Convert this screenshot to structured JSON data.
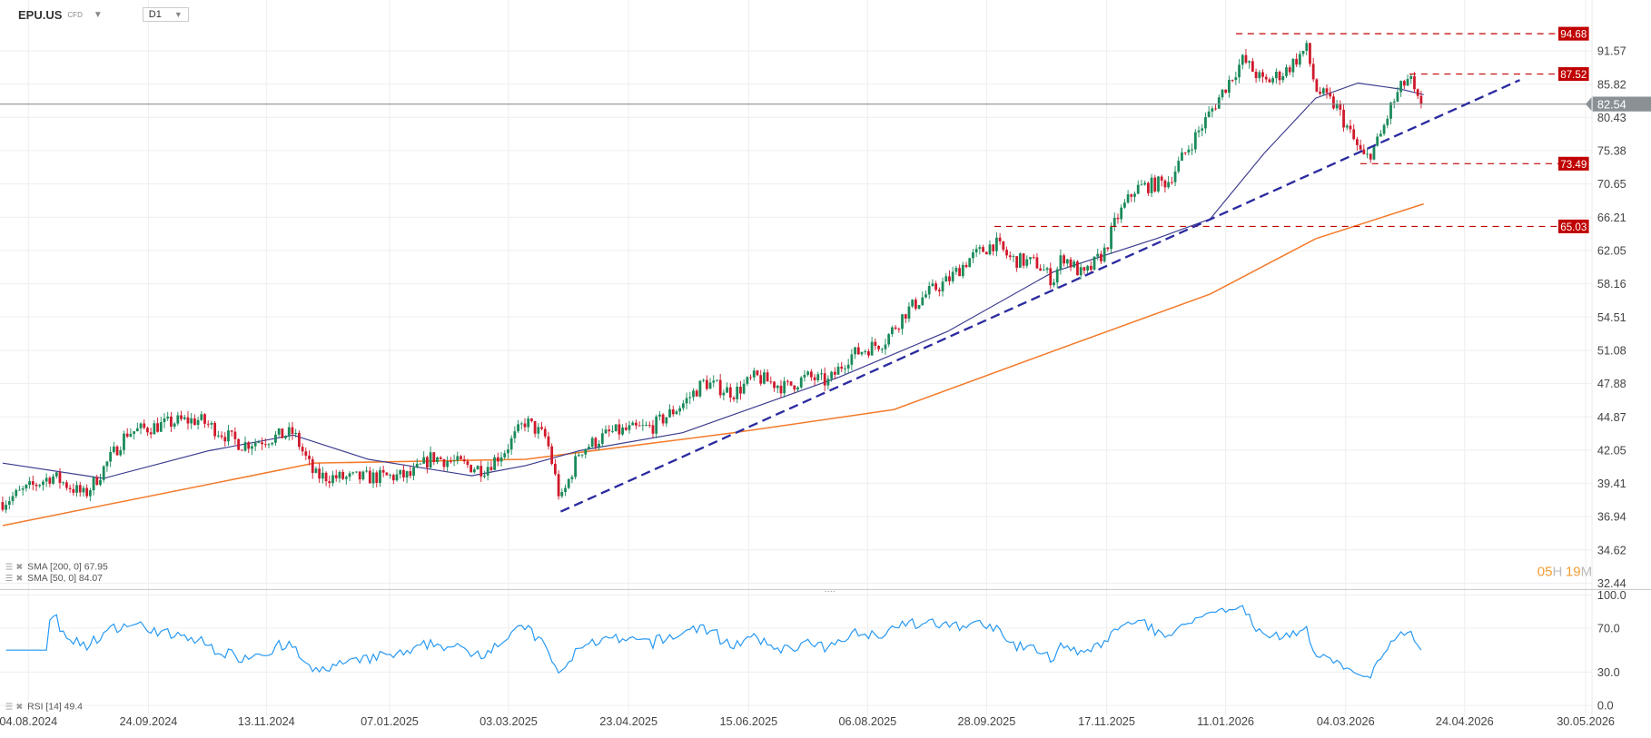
{
  "header": {
    "symbol": "EPU.US",
    "instrument_type": "CFD",
    "timeframe": "D1"
  },
  "countdown": {
    "hours": "05",
    "h": "H",
    "minutes": "19",
    "m": "M"
  },
  "legend": {
    "sma200": "SMA [200, 0] 67.95",
    "sma50": "SMA [50, 0] 84.07",
    "rsi": "RSI [14] 49.4"
  },
  "chart_data": {
    "type": "candlestick",
    "scale": "log",
    "grid": true,
    "ylim": [
      32.44,
      94.68
    ],
    "y_ticks": [
      "91.57",
      "85.82",
      "80.43",
      "75.38",
      "70.65",
      "66.21",
      "62.05",
      "58.16",
      "54.51",
      "51.08",
      "47.88",
      "44.87",
      "42.05",
      "39.41",
      "36.94",
      "34.62",
      "32.44"
    ],
    "x_ticks": [
      "04.08.2024",
      "24.09.2024",
      "13.11.2024",
      "07.01.2025",
      "03.03.2025",
      "23.04.2025",
      "15.06.2025",
      "06.08.2025",
      "28.09.2025",
      "17.11.2025",
      "11.01.2026",
      "04.03.2026",
      "24.04.2026",
      "30.05.2026"
    ],
    "last_price": {
      "value": 82.54,
      "label": "82.54",
      "color": "#8a9196"
    },
    "levels": [
      {
        "value": 94.68,
        "label": "94.68",
        "from": "2026-01-01"
      },
      {
        "value": 87.52,
        "label": "87.52",
        "from": "2026-03-16"
      },
      {
        "value": 73.49,
        "label": "73.49",
        "from": "2026-02-23"
      },
      {
        "value": 65.03,
        "label": "65.03",
        "from": "2025-09-20"
      }
    ],
    "trendline": {
      "from": {
        "date": "2025-03-19",
        "value": 37.3
      },
      "to": {
        "date": "2026-05-02",
        "value": 86.5
      }
    },
    "colors": {
      "up": "#1a8a5a",
      "down": "#d0192b",
      "sma50": "#3b3b8f",
      "sma200": "#f37b2b",
      "trend": "#2a2aa0",
      "level": "#c00000",
      "rsi": "#2196f3"
    },
    "closes": [
      [
        "2024-07-24",
        38.0
      ],
      [
        "2024-08-14",
        40.0
      ],
      [
        "2024-08-28",
        38.5
      ],
      [
        "2024-09-03",
        40.0
      ],
      [
        "2024-09-15",
        43.5
      ],
      [
        "2024-10-07",
        44.5
      ],
      [
        "2024-10-16",
        44.6
      ],
      [
        "2024-11-03",
        42.5
      ],
      [
        "2024-11-25",
        43.5
      ],
      [
        "2024-12-04",
        40.0
      ],
      [
        "2024-12-18",
        39.8
      ],
      [
        "2025-01-14",
        40.0
      ],
      [
        "2025-01-23",
        41.5
      ],
      [
        "2025-02-14",
        40.5
      ],
      [
        "2025-02-23",
        42.0
      ],
      [
        "2025-03-04",
        44.5
      ],
      [
        "2025-03-13",
        43.0
      ],
      [
        "2025-03-19",
        38.0
      ],
      [
        "2025-03-27",
        42.0
      ],
      [
        "2025-04-09",
        43.5
      ],
      [
        "2025-04-27",
        44.0
      ],
      [
        "2025-05-10",
        46.0
      ],
      [
        "2025-05-19",
        48.0
      ],
      [
        "2025-06-01",
        47.0
      ],
      [
        "2025-06-10",
        48.5
      ],
      [
        "2025-06-23",
        47.5
      ],
      [
        "2025-07-02",
        48.5
      ],
      [
        "2025-07-11",
        48.0
      ],
      [
        "2025-07-20",
        50.5
      ],
      [
        "2025-08-04",
        52.0
      ],
      [
        "2025-08-13",
        55.0
      ],
      [
        "2025-08-22",
        57.0
      ],
      [
        "2025-08-31",
        58.5
      ],
      [
        "2025-09-09",
        61.0
      ],
      [
        "2025-09-20",
        63.0
      ],
      [
        "2025-09-27",
        61.0
      ],
      [
        "2025-10-08",
        60.5
      ],
      [
        "2025-10-15",
        58.5
      ],
      [
        "2025-10-19",
        61.5
      ],
      [
        "2025-10-28",
        59.0
      ],
      [
        "2025-11-06",
        62.0
      ],
      [
        "2025-11-11",
        66.0
      ],
      [
        "2025-11-19",
        70.0
      ],
      [
        "2025-12-03",
        71.0
      ],
      [
        "2025-12-12",
        76.0
      ],
      [
        "2025-12-19",
        80.0
      ],
      [
        "2025-12-30",
        87.0
      ],
      [
        "2026-01-04",
        90.0
      ],
      [
        "2026-01-13",
        86.0
      ],
      [
        "2026-01-22",
        88.0
      ],
      [
        "2026-01-31",
        92.0
      ],
      [
        "2026-02-04",
        85.0
      ],
      [
        "2026-02-13",
        82.0
      ],
      [
        "2026-02-20",
        77.0
      ],
      [
        "2026-02-25",
        74.0
      ],
      [
        "2026-03-03",
        77.0
      ],
      [
        "2026-03-08",
        82.0
      ],
      [
        "2026-03-12",
        85.0
      ],
      [
        "2026-03-16",
        87.0
      ],
      [
        "2026-03-19",
        83.0
      ],
      [
        "2026-03-22",
        82.54
      ]
    ],
    "sma200": [
      [
        "2024-07-24",
        36.3
      ],
      [
        "2024-12-04",
        41.0
      ],
      [
        "2025-03-04",
        41.3
      ],
      [
        "2025-06-01",
        43.5
      ],
      [
        "2025-08-08",
        45.5
      ],
      [
        "2025-10-15",
        51.0
      ],
      [
        "2025-12-21",
        57.0
      ],
      [
        "2026-02-04",
        63.5
      ],
      [
        "2026-03-22",
        67.95
      ]
    ],
    "sma50": [
      [
        "2024-07-24",
        41.0
      ],
      [
        "2024-09-05",
        39.8
      ],
      [
        "2024-10-20",
        42.0
      ],
      [
        "2024-11-25",
        43.3
      ],
      [
        "2024-12-27",
        41.3
      ],
      [
        "2025-02-09",
        40.0
      ],
      [
        "2025-03-04",
        40.8
      ],
      [
        "2025-03-27",
        42.0
      ],
      [
        "2025-05-10",
        43.5
      ],
      [
        "2025-07-16",
        48.5
      ],
      [
        "2025-08-31",
        53.0
      ],
      [
        "2025-10-15",
        59.5
      ],
      [
        "2025-11-28",
        63.5
      ],
      [
        "2025-12-21",
        66.0
      ],
      [
        "2026-01-13",
        75.0
      ],
      [
        "2026-02-04",
        83.5
      ],
      [
        "2026-02-22",
        86.0
      ],
      [
        "2026-03-12",
        85.0
      ],
      [
        "2026-03-22",
        84.07
      ]
    ],
    "rsi": {
      "period": 14,
      "last": 49.4,
      "ticks": [
        "100.0",
        "70.0",
        "30.0",
        "0.0"
      ]
    }
  }
}
